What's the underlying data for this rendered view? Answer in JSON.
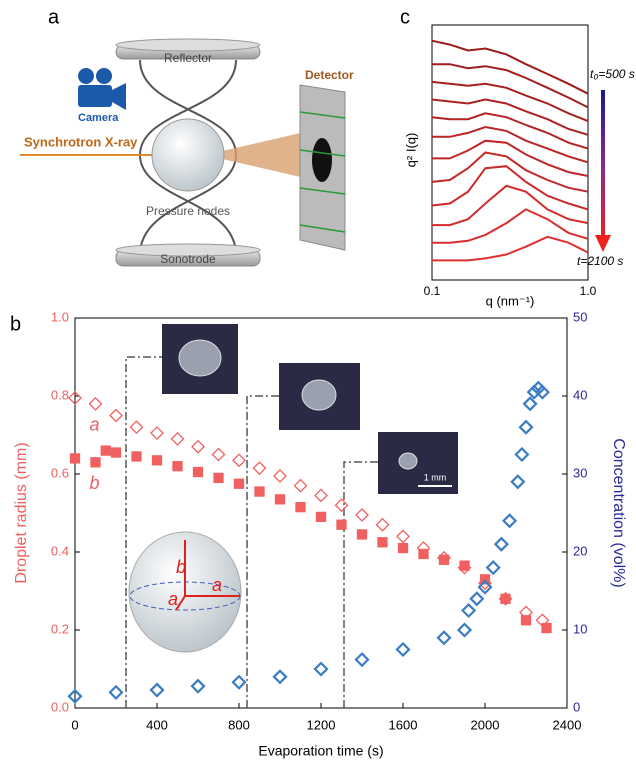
{
  "panels": {
    "a": "a",
    "b": "b",
    "c": "c"
  },
  "diagram": {
    "reflector": "Reflector",
    "detector": "Detector",
    "camera": "Camera",
    "xray": "Synchrotron X-ray",
    "nodes": "Pressure nodes",
    "sonotrode": "Sonotrode"
  },
  "chart_data": [
    {
      "type": "line",
      "x_label": "q (nm⁻¹)",
      "y_label": "q² I(q)",
      "log_x": true,
      "x": [
        0.1,
        0.13,
        0.17,
        0.22,
        0.3,
        0.4,
        0.55,
        0.75,
        1.0
      ],
      "xlim": [
        0.1,
        1.0
      ],
      "xticks": [
        0.1,
        {
          "value": 1.0,
          "label": "1.0"
        }
      ],
      "ylim": [
        0,
        13
      ],
      "annotations": {
        "start": "t₀=500 s",
        "end": "t=2100 s"
      },
      "series": [
        {
          "color": "#9c1b1b",
          "values": [
            12.2,
            12.0,
            11.7,
            11.8,
            11.5,
            11.0,
            10.5,
            10.0,
            9.5
          ]
        },
        {
          "color": "#a21d1d",
          "values": [
            11.0,
            11.0,
            10.8,
            10.9,
            10.7,
            10.3,
            9.8,
            9.3,
            8.8
          ]
        },
        {
          "color": "#a81f1f",
          "values": [
            10.1,
            10.0,
            9.9,
            10.0,
            9.8,
            9.4,
            9.0,
            8.5,
            8.1
          ]
        },
        {
          "color": "#ae2121",
          "values": [
            9.2,
            9.1,
            9.0,
            9.2,
            9.0,
            8.6,
            8.2,
            7.7,
            7.4
          ]
        },
        {
          "color": "#b42222",
          "values": [
            8.3,
            8.2,
            8.2,
            8.5,
            8.3,
            7.9,
            7.5,
            7.0,
            6.7
          ]
        },
        {
          "color": "#ba2424",
          "values": [
            7.3,
            7.3,
            7.5,
            7.8,
            7.6,
            7.1,
            6.7,
            6.3,
            6.0
          ]
        },
        {
          "color": "#c02626",
          "values": [
            6.2,
            6.2,
            6.6,
            7.1,
            7.0,
            6.4,
            5.9,
            5.5,
            5.3
          ]
        },
        {
          "color": "#c62828",
          "values": [
            5.0,
            5.1,
            5.7,
            6.5,
            6.3,
            5.6,
            5.1,
            4.7,
            4.5
          ]
        },
        {
          "color": "#cc2a2a",
          "values": [
            3.8,
            3.9,
            4.5,
            5.7,
            5.8,
            5.0,
            4.3,
            3.9,
            3.6
          ]
        },
        {
          "color": "#d22c2c",
          "values": [
            2.8,
            2.8,
            3.1,
            3.9,
            4.8,
            4.5,
            3.6,
            3.1,
            2.9
          ]
        },
        {
          "color": "#d82e2e",
          "values": [
            1.9,
            1.9,
            2.0,
            2.3,
            2.9,
            3.6,
            3.1,
            2.4,
            2.1
          ]
        },
        {
          "color": "#de3030",
          "values": [
            1.0,
            1.0,
            1.0,
            1.1,
            1.3,
            1.7,
            2.2,
            1.9,
            1.4
          ]
        }
      ]
    },
    {
      "type": "scatter",
      "x_label": "Evaporation time (s)",
      "y_label": "Droplet radius (mm)",
      "y2_label": "Concentration (vol%)",
      "xlim": [
        0,
        2400
      ],
      "xticks": [
        0,
        400,
        800,
        1200,
        1600,
        2000,
        2400
      ],
      "ylim": [
        0,
        1
      ],
      "yticks": [
        {
          "value": 0,
          "label": "0.0"
        },
        0.2,
        0.4,
        0.6,
        0.8,
        {
          "value": 1,
          "label": "1.0"
        }
      ],
      "y2lim": [
        0,
        50
      ],
      "y2ticks": [
        0,
        10,
        20,
        30,
        40,
        50
      ],
      "inset_labels": [
        "b",
        "a",
        "a"
      ],
      "scale_bar": "1 mm",
      "series": [
        {
          "name": "a",
          "marker": "diamond",
          "color": "#f06060",
          "x": [
            0,
            100,
            200,
            300,
            400,
            500,
            600,
            700,
            800,
            900,
            1000,
            1100,
            1200,
            1300,
            1400,
            1500,
            1600,
            1700,
            1800,
            1900,
            2000,
            2100,
            2200,
            2280
          ],
          "values": [
            0.795,
            0.78,
            0.75,
            0.72,
            0.705,
            0.69,
            0.67,
            0.65,
            0.635,
            0.615,
            0.595,
            0.57,
            0.545,
            0.52,
            0.495,
            0.47,
            0.44,
            0.41,
            0.385,
            0.36,
            0.32,
            0.28,
            0.245,
            0.225
          ]
        },
        {
          "name": "b",
          "marker": "square",
          "color": "#f06060",
          "x": [
            0,
            100,
            150,
            200,
            300,
            400,
            500,
            600,
            700,
            800,
            900,
            1000,
            1100,
            1200,
            1300,
            1400,
            1500,
            1600,
            1700,
            1800,
            1900,
            2000,
            2100,
            2200,
            2300
          ],
          "values": [
            0.64,
            0.63,
            0.66,
            0.655,
            0.645,
            0.635,
            0.62,
            0.605,
            0.59,
            0.575,
            0.555,
            0.535,
            0.515,
            0.49,
            0.47,
            0.445,
            0.425,
            0.41,
            0.395,
            0.38,
            0.365,
            0.33,
            0.28,
            0.225,
            0.205
          ]
        },
        {
          "marker": "diamond",
          "color": "#3a7cc4",
          "axis": "y2",
          "x": [
            0,
            200,
            400,
            600,
            800,
            1000,
            1200,
            1400,
            1600,
            1800,
            1900,
            1920,
            1960,
            2000,
            2040,
            2080,
            2120,
            2160,
            2180,
            2200,
            2220,
            2240,
            2260,
            2280
          ],
          "values": [
            1.5,
            2,
            2.3,
            2.8,
            3.3,
            4,
            5,
            6.2,
            7.5,
            9,
            10,
            12.5,
            14,
            15.5,
            18,
            21,
            24,
            29,
            32.5,
            36,
            39,
            40.5,
            41,
            40.5
          ]
        }
      ]
    }
  ]
}
